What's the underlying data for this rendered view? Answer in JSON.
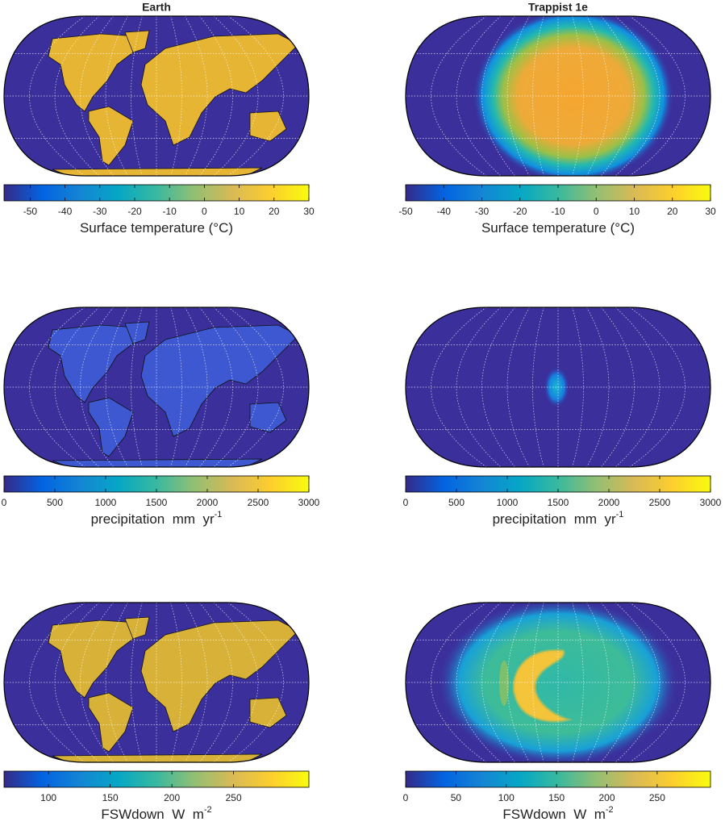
{
  "colormap": [
    "#352a87",
    "#0363e1",
    "#1485d4",
    "#06a7c6",
    "#38b99e",
    "#92bf73",
    "#d9ba56",
    "#fcce2e",
    "#f9fb0e"
  ],
  "chart_data": [
    {
      "type": "map",
      "title": "Earth",
      "colorbar": {
        "lim": [
          -57.5,
          30
        ],
        "ticks": [
          -50,
          -40,
          -30,
          -20,
          -10,
          0,
          10,
          20,
          30
        ],
        "label": [
          "Surface temperature (°C)"
        ]
      }
    },
    {
      "type": "map",
      "title": "Trappist 1e",
      "colorbar": {
        "lim": [
          -50,
          30
        ],
        "ticks": [
          -50,
          -40,
          -30,
          -20,
          -10,
          0,
          10,
          20,
          30
        ],
        "label": [
          "Surface temperature (°C)"
        ]
      }
    },
    {
      "type": "map",
      "colorbar": {
        "lim": [
          0,
          3000
        ],
        "ticks": [
          0,
          500,
          1000,
          1500,
          2000,
          2500,
          3000
        ],
        "label": [
          "precipitation  mm  yr",
          "-1"
        ]
      }
    },
    {
      "type": "map",
      "colorbar": {
        "lim": [
          0,
          3000
        ],
        "ticks": [
          0,
          500,
          1000,
          1500,
          2000,
          2500,
          3000
        ],
        "label": [
          "precipitation  mm  yr",
          "-1"
        ]
      }
    },
    {
      "type": "map",
      "colorbar": {
        "lim": [
          64,
          311
        ],
        "ticks": [
          100,
          150,
          200,
          250
        ],
        "label": [
          "FSWdown  W  m",
          "-2"
        ]
      }
    },
    {
      "type": "map",
      "colorbar": {
        "lim": [
          0,
          303
        ],
        "ticks": [
          0,
          50,
          100,
          150,
          200,
          250
        ],
        "label": [
          "FSWdown  W  m",
          "-2"
        ]
      }
    }
  ]
}
